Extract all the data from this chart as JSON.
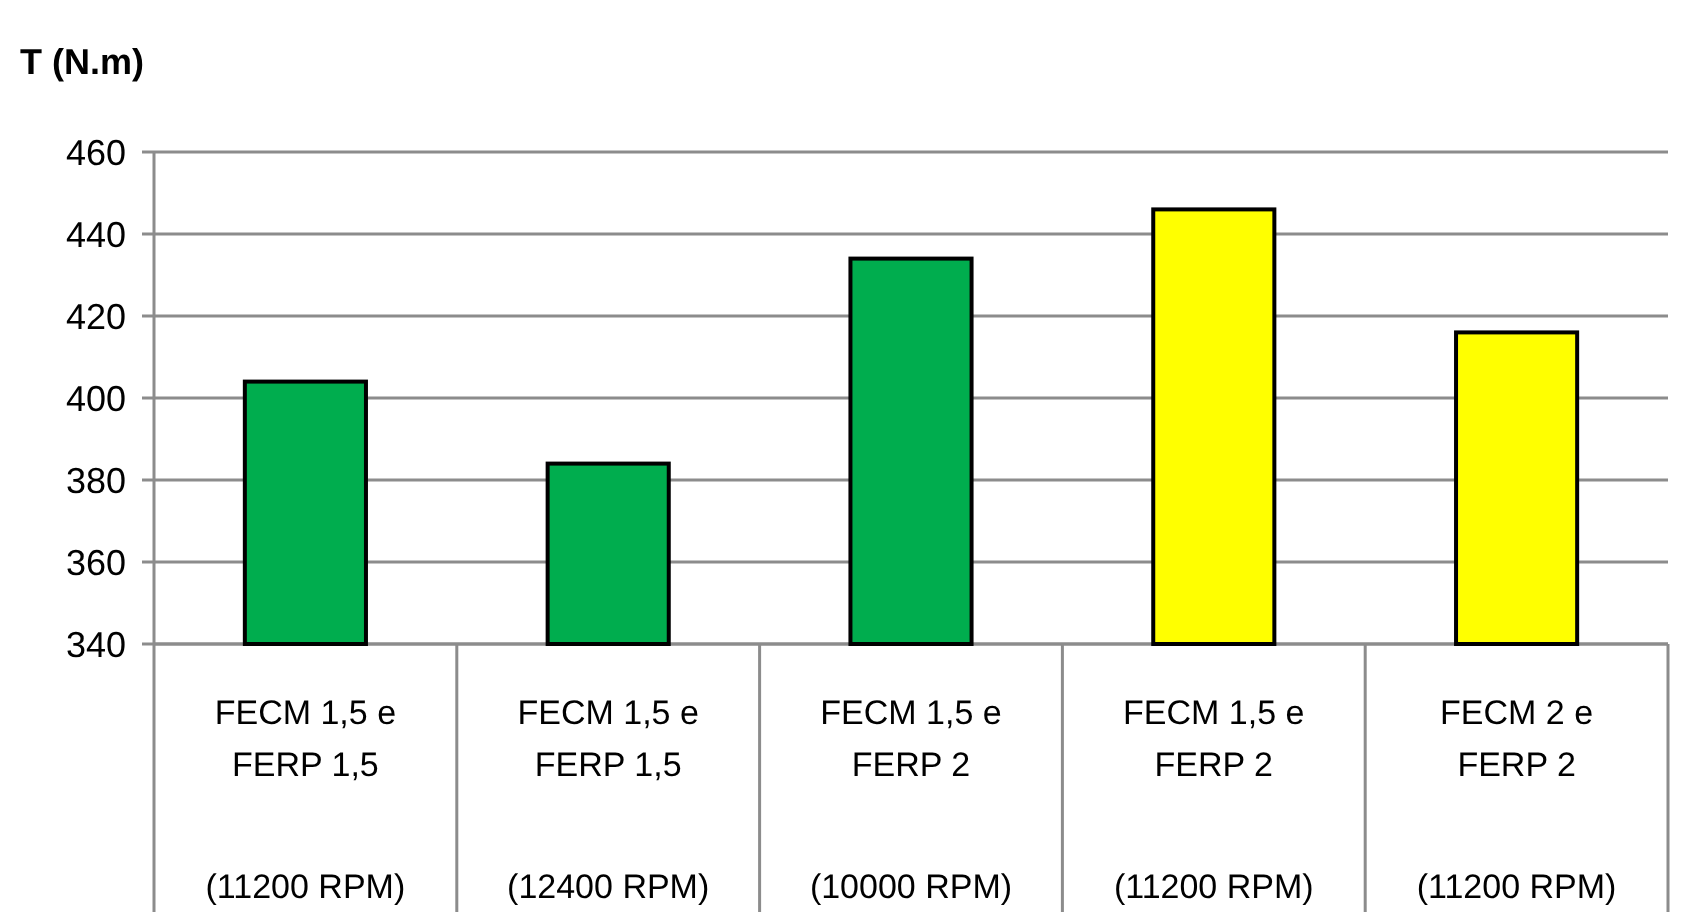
{
  "chart_data": {
    "type": "bar",
    "title": "T (N.m)",
    "categories": [
      "FECM 1,5 e\nFERP 1,5\n(11200 RPM)",
      "FECM 1,5 e\nFERP 1,5\n(12400 RPM)",
      "FECM 1,5 e\nFERP 2\n(10000 RPM)",
      "FECM 1,5 e\nFERP 2\n(11200 RPM)",
      "FECM 2 e\nFERP 2\n(11200 RPM)"
    ],
    "values": [
      404,
      384,
      434,
      446,
      416
    ],
    "colors": [
      "#00ad4e",
      "#00ad4e",
      "#00ad4e",
      "#ffff00",
      "#ffff00"
    ],
    "ylim": [
      340,
      460
    ],
    "yticks": [
      340,
      360,
      380,
      400,
      420,
      440,
      460
    ],
    "grid": "y"
  }
}
